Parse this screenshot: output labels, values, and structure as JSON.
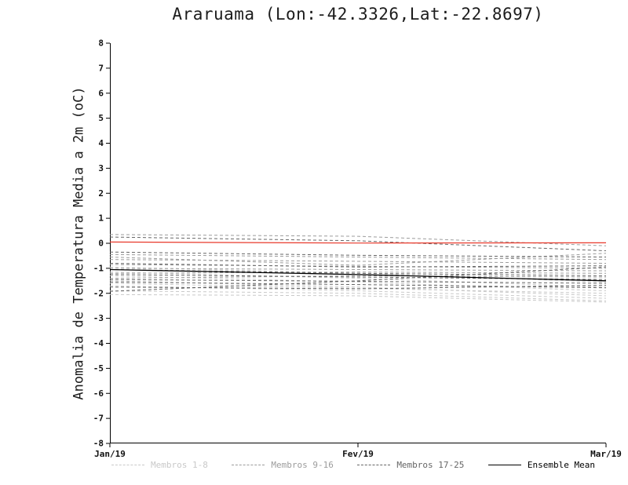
{
  "title": "Araruama (Lon:-42.3326,Lat:-22.8697)",
  "chart_data": {
    "type": "line",
    "title": "Araruama (Lon:-42.3326,Lat:-22.8697)",
    "ylabel": "Anomalia de Temperatura Media a 2m (oC)",
    "xlabel": "",
    "x_categories": [
      "Jan/19",
      "Fev/19",
      "Mar/19"
    ],
    "ylim": [
      -8,
      8
    ],
    "ytick_step": 1,
    "grid": false,
    "legend_position": "bottom",
    "colors": {
      "members_1_8": "#c9c9c9",
      "members_9_16": "#9c9c9c",
      "members_17_25": "#666666",
      "ensemble_mean": "#000000",
      "zero_reference": "#e8392b"
    },
    "groups": [
      {
        "label": "Membros 1-8",
        "color": "#c9c9c9",
        "style": "dashed",
        "width": 1,
        "members": [
          [
            -1.3,
            -1.55,
            -1.9
          ],
          [
            -1.5,
            -1.75,
            -2.1
          ],
          [
            -1.7,
            -1.9,
            -2.2
          ],
          [
            -1.9,
            -2.0,
            -2.3
          ],
          [
            -2.05,
            -2.1,
            -2.35
          ],
          [
            -1.15,
            -1.4,
            -1.75
          ],
          [
            -0.95,
            -1.2,
            -1.55
          ],
          [
            -1.6,
            -1.8,
            -2.0
          ]
        ]
      },
      {
        "label": "Membros 9-16",
        "color": "#9c9c9c",
        "style": "dashed",
        "width": 1,
        "members": [
          [
            0.35,
            0.28,
            -0.1
          ],
          [
            -0.45,
            -0.55,
            -0.65
          ],
          [
            -0.65,
            -0.72,
            -0.8
          ],
          [
            -0.85,
            -0.92,
            -1.0
          ],
          [
            -1.0,
            -1.05,
            -1.1
          ],
          [
            -1.2,
            -1.15,
            -1.2
          ],
          [
            -1.4,
            -1.3,
            -1.35
          ],
          [
            -0.55,
            -0.88,
            -0.4
          ]
        ]
      },
      {
        "label": "Membros 17-25",
        "color": "#666666",
        "style": "dashed",
        "width": 1,
        "members": [
          [
            0.25,
            0.1,
            -0.3
          ],
          [
            -0.35,
            -0.48,
            -0.55
          ],
          [
            -0.8,
            -0.95,
            -0.9
          ],
          [
            -1.05,
            -1.2,
            -1.3
          ],
          [
            -1.25,
            -1.35,
            -1.45
          ],
          [
            -1.45,
            -1.52,
            -1.6
          ],
          [
            -1.55,
            -1.65,
            -1.78
          ],
          [
            -1.75,
            -1.82,
            -1.68
          ],
          [
            -1.92,
            -1.5,
            -0.95
          ]
        ]
      },
      {
        "label": "Zero Reference",
        "color": "#e8392b",
        "style": "solid",
        "width": 1.2,
        "members": [
          [
            0.05,
            0.01,
            0.02
          ]
        ]
      },
      {
        "label": "Ensemble Mean",
        "color": "#000000",
        "style": "solid",
        "width": 1.3,
        "members": [
          [
            -1.05,
            -1.25,
            -1.5
          ]
        ]
      }
    ],
    "legend": [
      "Membros 1-8",
      "Membros 9-16",
      "Membros 17-25",
      "Ensemble Mean"
    ]
  }
}
